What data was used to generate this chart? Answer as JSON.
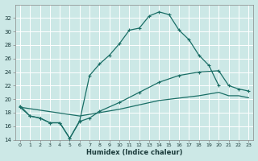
{
  "xlabel": "Humidex (Indice chaleur)",
  "bg_color": "#cce8e6",
  "grid_color": "#ffffff",
  "line_color": "#1a6e66",
  "main_line_x": [
    0,
    1,
    2,
    3,
    4,
    5,
    6,
    7,
    8,
    9,
    10,
    11,
    12,
    13,
    14,
    15,
    16,
    17,
    18,
    19,
    20
  ],
  "main_line_y": [
    19.0,
    17.5,
    17.2,
    16.5,
    16.5,
    14.2,
    16.8,
    23.5,
    25.2,
    26.5,
    28.2,
    30.2,
    30.5,
    32.3,
    32.9,
    32.5,
    30.2,
    28.8,
    26.5,
    25.0,
    22.0
  ],
  "mid_line_x": [
    0,
    1,
    2,
    3,
    4,
    5,
    6,
    7,
    8,
    10,
    12,
    14,
    16,
    18,
    20,
    21,
    22,
    23
  ],
  "mid_line_y": [
    18.8,
    17.5,
    17.2,
    16.5,
    16.5,
    14.2,
    16.7,
    17.2,
    18.2,
    19.5,
    21.0,
    22.5,
    23.5,
    24.0,
    24.2,
    22.0,
    21.5,
    21.2
  ],
  "flat_line_x": [
    0,
    6,
    10,
    14,
    18,
    20,
    21,
    22,
    23
  ],
  "flat_line_y": [
    18.8,
    17.5,
    18.5,
    19.8,
    20.5,
    21.0,
    20.5,
    20.5,
    20.2
  ],
  "ylim": [
    14,
    34
  ],
  "xlim": [
    -0.5,
    23.5
  ],
  "yticks": [
    14,
    16,
    18,
    20,
    22,
    24,
    26,
    28,
    30,
    32
  ],
  "xticks": [
    0,
    1,
    2,
    3,
    4,
    5,
    6,
    7,
    8,
    9,
    10,
    11,
    12,
    13,
    14,
    15,
    16,
    17,
    18,
    19,
    20,
    21,
    22,
    23
  ]
}
